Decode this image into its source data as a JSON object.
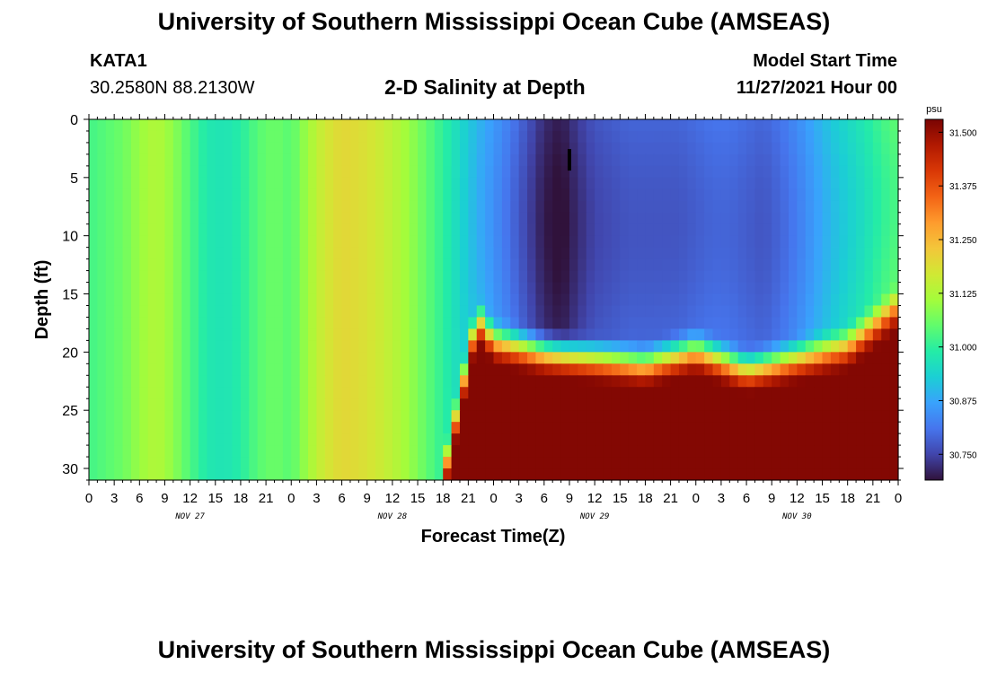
{
  "header": {
    "title": "University of Southern Mississippi Ocean Cube (AMSEAS)",
    "station_id": "KATA1",
    "station_coords": "30.2580N  88.2130W",
    "model_start_label": "Model Start Time",
    "model_start_value": "11/27/2021 Hour 00",
    "footer_title": "University of Southern Mississippi Ocean Cube (AMSEAS)"
  },
  "chart_data": {
    "type": "heatmap",
    "title": "2-D Salinity at Depth",
    "xlabel": "Forecast Time(Z)",
    "ylabel": "Depth (ft)",
    "y_range": [
      0,
      31
    ],
    "y_reversed": true,
    "y_ticks": [
      0,
      5,
      10,
      15,
      20,
      25,
      30
    ],
    "x_range_hours": [
      0,
      96
    ],
    "x_tick_labels": [
      "0",
      "3",
      "6",
      "9",
      "12",
      "15",
      "18",
      "21",
      "0",
      "3",
      "6",
      "9",
      "12",
      "15",
      "18",
      "21",
      "0",
      "3",
      "6",
      "9",
      "12",
      "15",
      "18",
      "21",
      "0",
      "3",
      "6",
      "9",
      "12",
      "15",
      "18",
      "21",
      "0"
    ],
    "x_day_labels": [
      "NOV 27",
      "NOV 28",
      "NOV 29",
      "NOV 30"
    ],
    "colorbar": {
      "unit": "psu",
      "range": [
        30.69,
        31.53
      ],
      "ticks": [
        "31.500",
        "31.375",
        "31.250",
        "31.125",
        "31.000",
        "30.875",
        "30.750"
      ],
      "colors": [
        "#30123b",
        "#4145ab",
        "#4675ed",
        "#39a2fc",
        "#1bcfd4",
        "#24eca6",
        "#61fc6c",
        "#a4fc3b",
        "#d1e834",
        "#f3c63a",
        "#fe9b2d",
        "#f36315",
        "#d93806",
        "#b11901",
        "#7a0403"
      ]
    },
    "surface_salinity_by_hour": [
      {
        "hour": 0,
        "psu": 31.02
      },
      {
        "hour": 2,
        "psu": 31.04
      },
      {
        "hour": 4,
        "psu": 31.06
      },
      {
        "hour": 6,
        "psu": 31.1
      },
      {
        "hour": 8,
        "psu": 31.13
      },
      {
        "hour": 10,
        "psu": 31.09
      },
      {
        "hour": 12,
        "psu": 31.03
      },
      {
        "hour": 14,
        "psu": 30.98
      },
      {
        "hour": 16,
        "psu": 30.97
      },
      {
        "hour": 18,
        "psu": 30.99
      },
      {
        "hour": 20,
        "psu": 31.04
      },
      {
        "hour": 22,
        "psu": 31.06
      },
      {
        "hour": 24,
        "psu": 31.04
      },
      {
        "hour": 26,
        "psu": 31.11
      },
      {
        "hour": 28,
        "psu": 31.17
      },
      {
        "hour": 30,
        "psu": 31.2
      },
      {
        "hour": 32,
        "psu": 31.19
      },
      {
        "hour": 34,
        "psu": 31.17
      },
      {
        "hour": 36,
        "psu": 31.14
      },
      {
        "hour": 38,
        "psu": 31.1
      },
      {
        "hour": 40,
        "psu": 31.05
      },
      {
        "hour": 42,
        "psu": 31.0
      },
      {
        "hour": 44,
        "psu": 30.95
      },
      {
        "hour": 46,
        "psu": 30.9
      },
      {
        "hour": 48,
        "psu": 30.86
      },
      {
        "hour": 50,
        "psu": 30.82
      },
      {
        "hour": 52,
        "psu": 30.77
      },
      {
        "hour": 54,
        "psu": 30.72
      },
      {
        "hour": 56,
        "psu": 30.7
      },
      {
        "hour": 58,
        "psu": 30.74
      },
      {
        "hour": 60,
        "psu": 30.77
      },
      {
        "hour": 62,
        "psu": 30.78
      },
      {
        "hour": 64,
        "psu": 30.79
      },
      {
        "hour": 66,
        "psu": 30.79
      },
      {
        "hour": 68,
        "psu": 30.79
      },
      {
        "hour": 70,
        "psu": 30.79
      },
      {
        "hour": 72,
        "psu": 30.8
      },
      {
        "hour": 74,
        "psu": 30.81
      },
      {
        "hour": 76,
        "psu": 30.81
      },
      {
        "hour": 78,
        "psu": 30.8
      },
      {
        "hour": 80,
        "psu": 30.79
      },
      {
        "hour": 82,
        "psu": 30.81
      },
      {
        "hour": 84,
        "psu": 30.84
      },
      {
        "hour": 86,
        "psu": 30.88
      },
      {
        "hour": 88,
        "psu": 30.92
      },
      {
        "hour": 90,
        "psu": 30.95
      },
      {
        "hour": 92,
        "psu": 30.98
      },
      {
        "hour": 94,
        "psu": 31.02
      },
      {
        "hour": 96,
        "psu": 31.05
      }
    ],
    "halocline_depth_by_hour": [
      {
        "hour": 42,
        "depth_ft": 31
      },
      {
        "hour": 46,
        "depth_ft": 17
      },
      {
        "hour": 48,
        "depth_ft": 19
      },
      {
        "hour": 54,
        "depth_ft": 20
      },
      {
        "hour": 60,
        "depth_ft": 20.5
      },
      {
        "hour": 66,
        "depth_ft": 21
      },
      {
        "hour": 72,
        "depth_ft": 19.8
      },
      {
        "hour": 78,
        "depth_ft": 21.5
      },
      {
        "hour": 84,
        "depth_ft": 20.5
      },
      {
        "hour": 90,
        "depth_ft": 19.5
      },
      {
        "hour": 96,
        "depth_ft": 16
      }
    ],
    "bottom_salinity_psu": 31.52,
    "marker": {
      "hour": 57,
      "depth_ft": 3.4
    }
  }
}
